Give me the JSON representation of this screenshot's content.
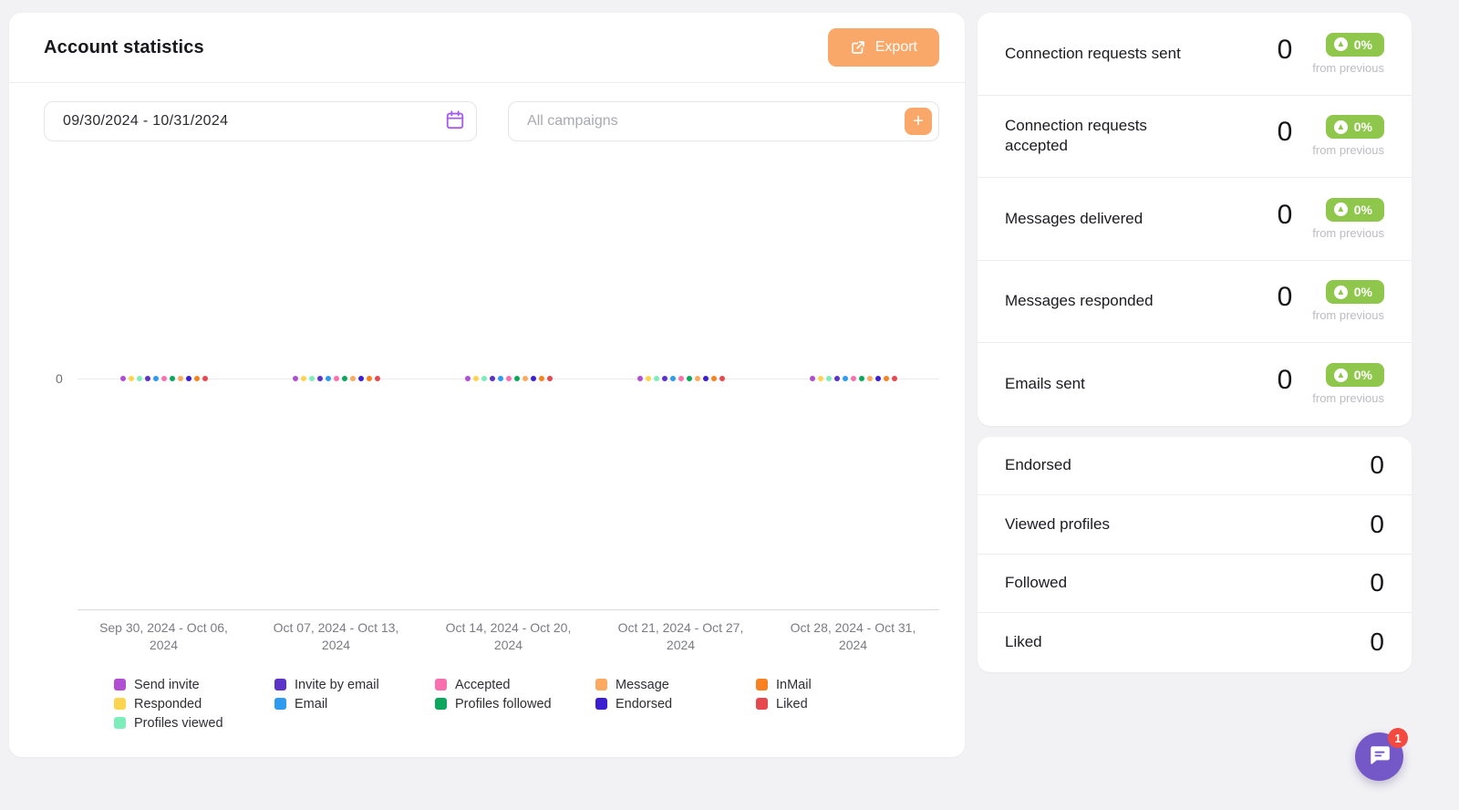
{
  "header": {
    "title": "Account statistics",
    "export_label": "Export"
  },
  "filters": {
    "date_range": "09/30/2024 - 10/31/2024",
    "campaign_placeholder": "All campaigns"
  },
  "chart_data": {
    "type": "scatter",
    "title": "",
    "xlabel": "",
    "ylabel": "",
    "y_tick": "0",
    "ylim": [
      0,
      1
    ],
    "grid": false,
    "legend_position": "bottom",
    "categories": [
      "Sep 30, 2024 - Oct 06, 2024",
      "Oct 07, 2024 - Oct 13, 2024",
      "Oct 14, 2024 - Oct 20, 2024",
      "Oct 21, 2024 - Oct 27, 2024",
      "Oct 28, 2024 - Oct 31, 2024"
    ],
    "series": [
      {
        "name": "Send invite",
        "color": "#b04fd1",
        "values": [
          0,
          0,
          0,
          0,
          0
        ]
      },
      {
        "name": "Responded",
        "color": "#fdd44f",
        "values": [
          0,
          0,
          0,
          0,
          0
        ]
      },
      {
        "name": "Profiles viewed",
        "color": "#7deebb",
        "values": [
          0,
          0,
          0,
          0,
          0
        ]
      },
      {
        "name": "Invite by email",
        "color": "#5b33c7",
        "values": [
          0,
          0,
          0,
          0,
          0
        ]
      },
      {
        "name": "Email",
        "color": "#2e9bf0",
        "values": [
          0,
          0,
          0,
          0,
          0
        ]
      },
      {
        "name": "Accepted",
        "color": "#f970ae",
        "values": [
          0,
          0,
          0,
          0,
          0
        ]
      },
      {
        "name": "Profiles followed",
        "color": "#0ca65c",
        "values": [
          0,
          0,
          0,
          0,
          0
        ]
      },
      {
        "name": "Message",
        "color": "#fbaa60",
        "values": [
          0,
          0,
          0,
          0,
          0
        ]
      },
      {
        "name": "Endorsed",
        "color": "#3b1ed0",
        "values": [
          0,
          0,
          0,
          0,
          0
        ]
      },
      {
        "name": "InMail",
        "color": "#f8821f",
        "values": [
          0,
          0,
          0,
          0,
          0
        ]
      },
      {
        "name": "Liked",
        "color": "#e6484f",
        "values": [
          0,
          0,
          0,
          0,
          0
        ]
      }
    ],
    "legend_columns": [
      [
        0,
        1,
        2
      ],
      [
        3,
        4
      ],
      [
        5,
        6
      ],
      [
        7,
        8
      ],
      [
        9,
        10
      ]
    ]
  },
  "stats": {
    "rows": [
      {
        "label": "Connection requests sent",
        "value": "0",
        "change": "0%",
        "sub": "from previous"
      },
      {
        "label": "Connection requests accepted",
        "value": "0",
        "change": "0%",
        "sub": "from previous"
      },
      {
        "label": "Messages delivered",
        "value": "0",
        "change": "0%",
        "sub": "from previous"
      },
      {
        "label": "Messages responded",
        "value": "0",
        "change": "0%",
        "sub": "from previous"
      },
      {
        "label": "Emails sent",
        "value": "0",
        "change": "0%",
        "sub": "from previous"
      }
    ]
  },
  "totals": {
    "rows": [
      {
        "label": "Endorsed",
        "value": "0"
      },
      {
        "label": "Viewed profiles",
        "value": "0"
      },
      {
        "label": "Followed",
        "value": "0"
      },
      {
        "label": "Liked",
        "value": "0"
      }
    ]
  },
  "chat": {
    "badge": "1"
  },
  "colors": {
    "accent_orange": "#f9a869",
    "badge_green": "#8fc74c",
    "calendar_icon_purple": "#a55ce6",
    "chat_purple": "#7558c8",
    "badge_red": "#f4493f"
  }
}
